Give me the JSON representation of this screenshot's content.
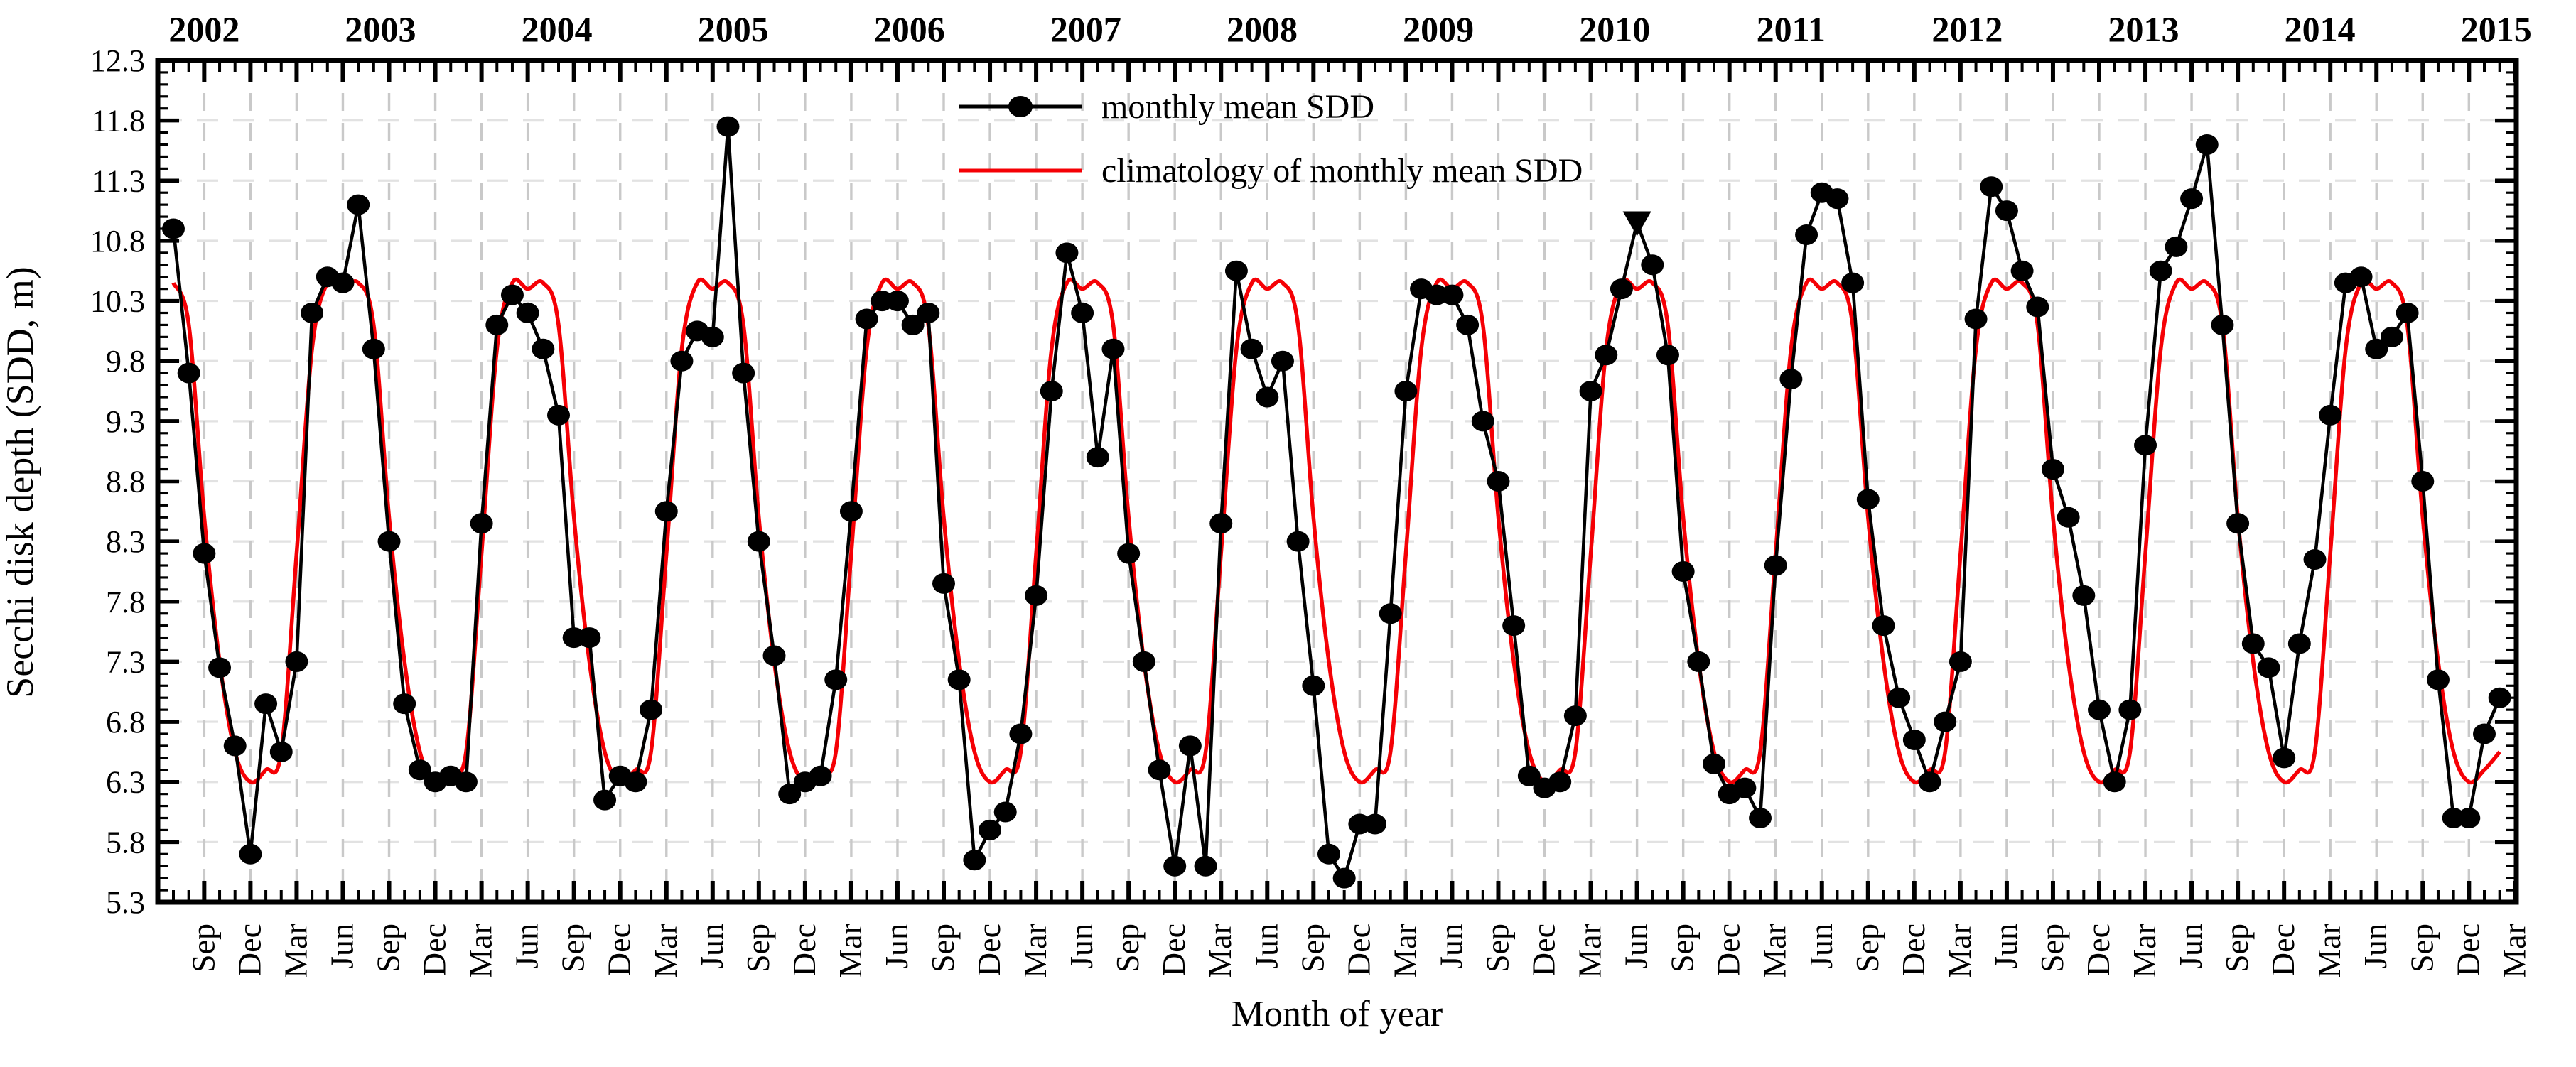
{
  "figure": {
    "x_axis_title": "Month of year",
    "y_axis_title": "Secchi disk depth (SDD, m)"
  },
  "chart_data": {
    "type": "line",
    "title": "",
    "xlabel": "Month of year",
    "ylabel": "Secchi disk depth (SDD, m)",
    "ylim": [
      5.3,
      12.3
    ],
    "ytick_major_step": 0.5,
    "ytick_minor_step": 0.1,
    "grid": true,
    "x_start_month": "2002-07",
    "x_end_month": "2015-02",
    "year_labels": [
      "2002",
      "2003",
      "2004",
      "2005",
      "2006",
      "2007",
      "2008",
      "2009",
      "2010",
      "2011",
      "2012",
      "2013",
      "2014",
      "2015"
    ],
    "month_tick_cycle": [
      "Sep",
      "Dec",
      "Mar",
      "Jun"
    ],
    "legend_position": "top-center-left",
    "colors": {
      "monthly": "#000000",
      "climatology": "#f50005"
    },
    "series": [
      {
        "name": "monthly mean SDD",
        "marker": "filled-circle",
        "color": "#000000",
        "start": "2002-07",
        "values": [
          10.9,
          9.7,
          8.2,
          7.25,
          6.6,
          5.7,
          6.95,
          6.55,
          7.3,
          10.2,
          10.5,
          10.45,
          11.1,
          9.9,
          8.3,
          6.95,
          6.4,
          6.3,
          6.35,
          6.3,
          8.45,
          10.1,
          10.35,
          10.2,
          9.9,
          9.35,
          7.5,
          7.5,
          6.15,
          6.35,
          6.3,
          6.9,
          8.55,
          9.8,
          10.05,
          10.0,
          11.75,
          9.7,
          8.3,
          7.35,
          6.2,
          6.3,
          6.35,
          7.15,
          8.55,
          10.15,
          10.3,
          10.3,
          10.1,
          10.2,
          7.95,
          7.15,
          5.65,
          5.9,
          6.05,
          6.7,
          7.85,
          9.55,
          10.7,
          10.2,
          9.0,
          9.9,
          8.2,
          7.3,
          6.4,
          5.6,
          6.6,
          5.6,
          8.45,
          10.55,
          9.9,
          9.5,
          9.8,
          8.3,
          7.1,
          5.7,
          5.5,
          5.95,
          5.95,
          7.7,
          9.55,
          10.4,
          10.35,
          10.35,
          10.1,
          9.3,
          8.8,
          7.6,
          6.35,
          6.25,
          6.3,
          6.85,
          9.55,
          9.85,
          10.4,
          10.95,
          10.6,
          9.85,
          8.05,
          7.3,
          6.45,
          6.2,
          6.25,
          6.0,
          8.1,
          9.65,
          10.85,
          11.2,
          11.15,
          10.45,
          8.65,
          7.6,
          7.0,
          6.65,
          6.3,
          6.8,
          7.3,
          10.15,
          11.25,
          11.05,
          10.55,
          10.25,
          8.9,
          8.5,
          7.85,
          6.9,
          6.3,
          6.9,
          9.1,
          10.55,
          10.75,
          11.15,
          11.6,
          10.1,
          8.45,
          7.45,
          7.25,
          6.5,
          7.45,
          8.15,
          9.35,
          10.45,
          10.5,
          9.9,
          10.0,
          10.2,
          8.8,
          7.15,
          6.0,
          6.0,
          6.7,
          7.0
        ],
        "special_marker": {
          "month": "2010-06",
          "index": 95,
          "shape": "triangle-down",
          "value": 10.95
        }
      },
      {
        "name": "climatology of monthly mean SDD",
        "marker": "none",
        "color": "#f50005",
        "climatology_jan_to_dec": [
          6.4,
          6.55,
          8.2,
          9.9,
          10.45,
          10.4,
          10.45,
          10.1,
          8.5,
          7.3,
          6.55,
          6.3
        ]
      }
    ],
    "legend": [
      "monthly mean SDD",
      "climatology of monthly mean SDD"
    ],
    "ytick_labels": [
      "5.3",
      "5.8",
      "6.3",
      "6.8",
      "7.3",
      "7.8",
      "8.3",
      "8.8",
      "9.3",
      "9.8",
      "10.3",
      "10.8",
      "11.3",
      "11.8",
      "12.3"
    ]
  }
}
